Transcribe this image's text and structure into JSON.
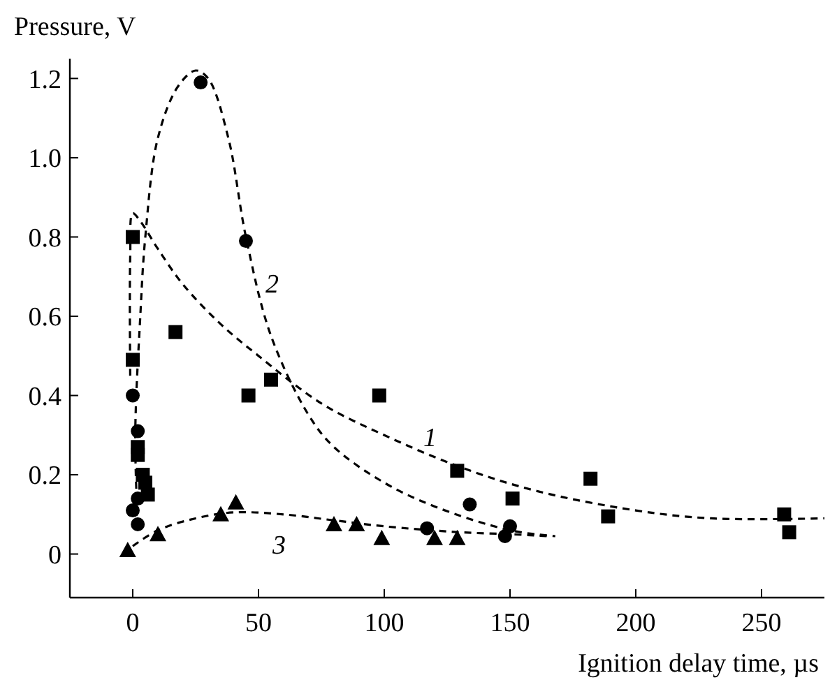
{
  "chart_data": {
    "type": "scatter",
    "xlabel": "Ignition delay time, µs",
    "ylabel": "Pressure, V",
    "xlim": [
      -25,
      275
    ],
    "ylim": [
      -0.11,
      1.25
    ],
    "xticks": [
      0,
      50,
      100,
      150,
      200,
      250
    ],
    "yticks": [
      0,
      0.2,
      0.4,
      0.6,
      0.8,
      {
        "value": 1,
        "label": "1.0"
      },
      1.2
    ],
    "grid": false,
    "legend": false,
    "series": [
      {
        "type": "line",
        "name": "1",
        "color": "#000000",
        "line_style": "dashed",
        "marker": "none",
        "x": [
          -1,
          -1,
          0,
          3,
          10,
          20,
          35,
          50,
          75,
          100,
          130,
          160,
          200,
          230,
          275
        ],
        "values": [
          0.45,
          0.75,
          0.86,
          0.84,
          0.77,
          0.68,
          0.58,
          0.5,
          0.38,
          0.3,
          0.22,
          0.16,
          0.11,
          0.09,
          0.09
        ]
      },
      {
        "type": "line",
        "name": "2",
        "color": "#000000",
        "line_style": "dashed",
        "marker": "none",
        "x": [
          2,
          1,
          3,
          5,
          10,
          18,
          25,
          30,
          38,
          45,
          55,
          70,
          80,
          100,
          120,
          150,
          168
        ],
        "values": [
          0.07,
          0.3,
          0.6,
          0.8,
          1.05,
          1.18,
          1.22,
          1.2,
          1.05,
          0.8,
          0.55,
          0.35,
          0.27,
          0.18,
          0.12,
          0.06,
          0.045
        ]
      },
      {
        "type": "line",
        "name": "3",
        "color": "#000000",
        "line_style": "dashed",
        "marker": "none",
        "x": [
          0,
          10,
          25,
          40,
          60,
          80,
          100,
          130,
          150,
          165
        ],
        "values": [
          0.02,
          0.06,
          0.09,
          0.105,
          0.1,
          0.085,
          0.07,
          0.055,
          0.05,
          0.045
        ]
      },
      {
        "color": "#000000",
        "marker": "square",
        "x": [
          0,
          0,
          2,
          2,
          4,
          5,
          6,
          17,
          46,
          55,
          98,
          129,
          151,
          182,
          189,
          259,
          261
        ],
        "values": [
          0.8,
          0.49,
          0.27,
          0.25,
          0.2,
          0.18,
          0.15,
          0.56,
          0.4,
          0.44,
          0.4,
          0.21,
          0.14,
          0.19,
          0.095,
          0.1,
          0.055
        ]
      },
      {
        "color": "#000000",
        "marker": "circle",
        "x": [
          27,
          45,
          0,
          2,
          0,
          2,
          2,
          117,
          134,
          148,
          150
        ],
        "values": [
          1.19,
          0.79,
          0.4,
          0.31,
          0.11,
          0.14,
          0.075,
          0.065,
          0.125,
          0.045,
          0.07
        ]
      },
      {
        "color": "#000000",
        "marker": "triangle",
        "x": [
          -2,
          10,
          35,
          41,
          80,
          89,
          99,
          120,
          129
        ],
        "values": [
          0.01,
          0.05,
          0.1,
          0.13,
          0.075,
          0.075,
          0.04,
          0.04,
          0.04
        ]
      }
    ]
  }
}
